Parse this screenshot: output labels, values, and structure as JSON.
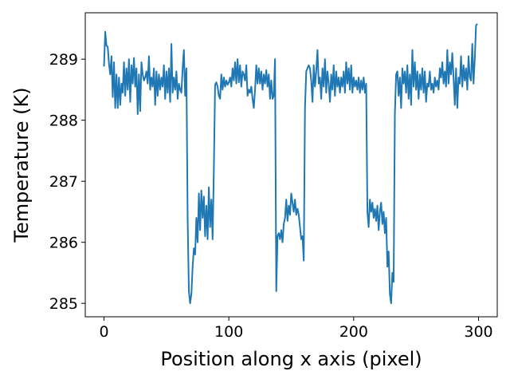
{
  "chart_data": {
    "type": "line",
    "title": "",
    "xlabel": "Position along x axis (pixel)",
    "ylabel": "Temperature (K)",
    "xlim": [
      -15,
      315
    ],
    "ylim": [
      284.78,
      289.76
    ],
    "xticks": [
      0,
      100,
      200,
      300
    ],
    "xtick_labels": [
      "0",
      "100",
      "200",
      "300"
    ],
    "yticks": [
      285,
      286,
      287,
      288,
      289
    ],
    "ytick_labels": [
      "285",
      "286",
      "287",
      "288",
      "289"
    ],
    "grid": false,
    "legend": "none",
    "series": [
      {
        "color": "#1f77b4",
        "points": [
          [
            0,
            288.88
          ],
          [
            1,
            289.45
          ],
          [
            2,
            289.22
          ],
          [
            3,
            289.2
          ],
          [
            4,
            288.92
          ],
          [
            5,
            288.75
          ],
          [
            6,
            289.05
          ],
          [
            7,
            288.38
          ],
          [
            8,
            288.95
          ],
          [
            9,
            288.2
          ],
          [
            10,
            288.75
          ],
          [
            11,
            288.2
          ],
          [
            12,
            288.7
          ],
          [
            13,
            288.25
          ],
          [
            14,
            288.6
          ],
          [
            15,
            288.45
          ],
          [
            16,
            288.95
          ],
          [
            17,
            288.4
          ],
          [
            18,
            288.85
          ],
          [
            19,
            288.5
          ],
          [
            20,
            289.0
          ],
          [
            21,
            288.3
          ],
          [
            22,
            288.9
          ],
          [
            23,
            288.6
          ],
          [
            24,
            289.02
          ],
          [
            25,
            288.55
          ],
          [
            26,
            288.85
          ],
          [
            27,
            288.1
          ],
          [
            28,
            288.75
          ],
          [
            29,
            288.15
          ],
          [
            30,
            288.95
          ],
          [
            31,
            288.75
          ],
          [
            32,
            288.65
          ],
          [
            33,
            288.7
          ],
          [
            34,
            288.8
          ],
          [
            35,
            288.6
          ],
          [
            36,
            289.05
          ],
          [
            37,
            288.5
          ],
          [
            38,
            288.7
          ],
          [
            39,
            288.55
          ],
          [
            40,
            288.85
          ],
          [
            41,
            288.25
          ],
          [
            42,
            288.8
          ],
          [
            43,
            288.4
          ],
          [
            44,
            288.75
          ],
          [
            45,
            288.5
          ],
          [
            46,
            288.7
          ],
          [
            47,
            288.55
          ],
          [
            48,
            288.9
          ],
          [
            49,
            288.35
          ],
          [
            50,
            288.8
          ],
          [
            51,
            288.45
          ],
          [
            52,
            288.85
          ],
          [
            53,
            288.3
          ],
          [
            54,
            289.25
          ],
          [
            55,
            288.45
          ],
          [
            56,
            288.7
          ],
          [
            57,
            288.5
          ],
          [
            58,
            288.8
          ],
          [
            59,
            288.35
          ],
          [
            60,
            288.6
          ],
          [
            61,
            288.5
          ],
          [
            62,
            288.45
          ],
          [
            63,
            288.85
          ],
          [
            64,
            289.15
          ],
          [
            65,
            288.4
          ],
          [
            66,
            288.85
          ],
          [
            67,
            286.4
          ],
          [
            68,
            285.2
          ],
          [
            69,
            285.0
          ],
          [
            70,
            285.15
          ],
          [
            71,
            285.6
          ],
          [
            72,
            285.9
          ],
          [
            73,
            285.8
          ],
          [
            74,
            286.4
          ],
          [
            75,
            286.0
          ],
          [
            76,
            286.8
          ],
          [
            77,
            286.2
          ],
          [
            78,
            286.85
          ],
          [
            79,
            286.4
          ],
          [
            80,
            286.75
          ],
          [
            81,
            286.1
          ],
          [
            82,
            286.6
          ],
          [
            83,
            286.05
          ],
          [
            84,
            286.9
          ],
          [
            85,
            286.25
          ],
          [
            86,
            286.7
          ],
          [
            87,
            286.05
          ],
          [
            88,
            287.2
          ],
          [
            89,
            288.58
          ],
          [
            90,
            288.62
          ],
          [
            91,
            288.55
          ],
          [
            92,
            288.4
          ],
          [
            93,
            288.35
          ],
          [
            94,
            288.75
          ],
          [
            95,
            288.5
          ],
          [
            96,
            288.7
          ],
          [
            97,
            288.55
          ],
          [
            98,
            288.65
          ],
          [
            99,
            288.58
          ],
          [
            100,
            288.62
          ],
          [
            101,
            288.7
          ],
          [
            102,
            288.55
          ],
          [
            103,
            288.85
          ],
          [
            104,
            288.65
          ],
          [
            105,
            288.95
          ],
          [
            106,
            288.6
          ],
          [
            107,
            289.0
          ],
          [
            108,
            288.62
          ],
          [
            109,
            288.9
          ],
          [
            110,
            288.55
          ],
          [
            111,
            288.8
          ],
          [
            112,
            288.75
          ],
          [
            113,
            288.65
          ],
          [
            114,
            288.9
          ],
          [
            115,
            288.4
          ],
          [
            116,
            288.5
          ],
          [
            117,
            288.45
          ],
          [
            118,
            288.55
          ],
          [
            119,
            288.35
          ],
          [
            120,
            288.2
          ],
          [
            121,
            288.5
          ],
          [
            122,
            288.9
          ],
          [
            123,
            288.6
          ],
          [
            124,
            288.85
          ],
          [
            125,
            288.6
          ],
          [
            126,
            288.8
          ],
          [
            127,
            288.5
          ],
          [
            128,
            288.75
          ],
          [
            129,
            288.6
          ],
          [
            130,
            288.82
          ],
          [
            131,
            288.55
          ],
          [
            132,
            288.75
          ],
          [
            133,
            288.35
          ],
          [
            134,
            288.65
          ],
          [
            135,
            288.35
          ],
          [
            136,
            288.4
          ],
          [
            137,
            289.0
          ],
          [
            138,
            285.2
          ],
          [
            139,
            286.1
          ],
          [
            140,
            286.15
          ],
          [
            141,
            286.05
          ],
          [
            142,
            286.2
          ],
          [
            143,
            286.0
          ],
          [
            144,
            286.3
          ],
          [
            145,
            286.4
          ],
          [
            146,
            286.7
          ],
          [
            147,
            286.35
          ],
          [
            148,
            286.6
          ],
          [
            149,
            286.45
          ],
          [
            150,
            286.8
          ],
          [
            151,
            286.65
          ],
          [
            152,
            286.5
          ],
          [
            153,
            286.7
          ],
          [
            154,
            286.45
          ],
          [
            155,
            286.55
          ],
          [
            156,
            286.45
          ],
          [
            157,
            286.25
          ],
          [
            158,
            286.05
          ],
          [
            159,
            286.1
          ],
          [
            160,
            285.7
          ],
          [
            161,
            288.2
          ],
          [
            162,
            288.8
          ],
          [
            163,
            288.85
          ],
          [
            164,
            288.9
          ],
          [
            165,
            288.85
          ],
          [
            166,
            288.65
          ],
          [
            167,
            288.3
          ],
          [
            168,
            288.9
          ],
          [
            169,
            288.55
          ],
          [
            170,
            288.8
          ],
          [
            171,
            289.15
          ],
          [
            172,
            288.6
          ],
          [
            173,
            288.7
          ],
          [
            174,
            288.35
          ],
          [
            175,
            288.85
          ],
          [
            176,
            288.55
          ],
          [
            177,
            289.0
          ],
          [
            178,
            288.45
          ],
          [
            179,
            288.8
          ],
          [
            180,
            288.6
          ],
          [
            181,
            288.3
          ],
          [
            182,
            288.75
          ],
          [
            183,
            288.5
          ],
          [
            184,
            288.9
          ],
          [
            185,
            288.4
          ],
          [
            186,
            288.8
          ],
          [
            187,
            288.55
          ],
          [
            188,
            288.7
          ],
          [
            189,
            288.45
          ],
          [
            190,
            288.7
          ],
          [
            191,
            288.55
          ],
          [
            192,
            288.8
          ],
          [
            193,
            288.45
          ],
          [
            194,
            288.95
          ],
          [
            195,
            288.6
          ],
          [
            196,
            288.85
          ],
          [
            197,
            288.5
          ],
          [
            198,
            288.9
          ],
          [
            199,
            288.45
          ],
          [
            200,
            288.7
          ],
          [
            201,
            288.55
          ],
          [
            202,
            288.65
          ],
          [
            203,
            288.5
          ],
          [
            204,
            288.7
          ],
          [
            205,
            288.45
          ],
          [
            206,
            288.65
          ],
          [
            207,
            288.5
          ],
          [
            208,
            288.7
          ],
          [
            209,
            288.45
          ],
          [
            210,
            288.6
          ],
          [
            211,
            286.5
          ],
          [
            212,
            286.25
          ],
          [
            213,
            286.7
          ],
          [
            214,
            286.5
          ],
          [
            215,
            286.65
          ],
          [
            216,
            286.4
          ],
          [
            217,
            286.55
          ],
          [
            218,
            286.35
          ],
          [
            219,
            286.6
          ],
          [
            220,
            286.2
          ],
          [
            221,
            286.5
          ],
          [
            222,
            286.65
          ],
          [
            223,
            286.3
          ],
          [
            224,
            286.5
          ],
          [
            225,
            286.15
          ],
          [
            226,
            286.4
          ],
          [
            227,
            285.6
          ],
          [
            228,
            285.85
          ],
          [
            229,
            285.15
          ],
          [
            230,
            285.0
          ],
          [
            231,
            285.5
          ],
          [
            232,
            285.35
          ],
          [
            233,
            288.1
          ],
          [
            234,
            288.75
          ],
          [
            235,
            288.8
          ],
          [
            236,
            288.4
          ],
          [
            237,
            288.7
          ],
          [
            238,
            288.2
          ],
          [
            239,
            288.85
          ],
          [
            240,
            288.6
          ],
          [
            241,
            288.8
          ],
          [
            242,
            288.45
          ],
          [
            243,
            288.9
          ],
          [
            244,
            288.35
          ],
          [
            245,
            288.75
          ],
          [
            246,
            288.25
          ],
          [
            247,
            289.15
          ],
          [
            248,
            288.55
          ],
          [
            249,
            288.95
          ],
          [
            250,
            288.5
          ],
          [
            251,
            288.8
          ],
          [
            252,
            288.35
          ],
          [
            253,
            288.75
          ],
          [
            254,
            288.5
          ],
          [
            255,
            288.85
          ],
          [
            256,
            288.45
          ],
          [
            257,
            288.8
          ],
          [
            258,
            288.3
          ],
          [
            259,
            288.6
          ],
          [
            260,
            288.55
          ],
          [
            261,
            288.8
          ],
          [
            262,
            288.5
          ],
          [
            263,
            288.6
          ],
          [
            264,
            288.45
          ],
          [
            265,
            288.7
          ],
          [
            266,
            288.55
          ],
          [
            267,
            288.65
          ],
          [
            268,
            288.5
          ],
          [
            269,
            288.85
          ],
          [
            270,
            288.7
          ],
          [
            271,
            288.95
          ],
          [
            272,
            288.6
          ],
          [
            273,
            288.8
          ],
          [
            274,
            288.55
          ],
          [
            275,
            289.15
          ],
          [
            276,
            288.6
          ],
          [
            277,
            288.95
          ],
          [
            278,
            288.75
          ],
          [
            279,
            289.1
          ],
          [
            280,
            288.7
          ],
          [
            281,
            288.25
          ],
          [
            282,
            288.85
          ],
          [
            283,
            288.2
          ],
          [
            284,
            288.7
          ],
          [
            285,
            288.6
          ],
          [
            286,
            289.05
          ],
          [
            287,
            288.55
          ],
          [
            288,
            288.9
          ],
          [
            289,
            288.65
          ],
          [
            290,
            288.85
          ],
          [
            291,
            288.5
          ],
          [
            292,
            289.05
          ],
          [
            293,
            288.7
          ],
          [
            294,
            288.65
          ],
          [
            295,
            289.25
          ],
          [
            296,
            288.6
          ],
          [
            297,
            289.0
          ],
          [
            298,
            289.55
          ],
          [
            299,
            289.58
          ]
        ]
      }
    ]
  }
}
